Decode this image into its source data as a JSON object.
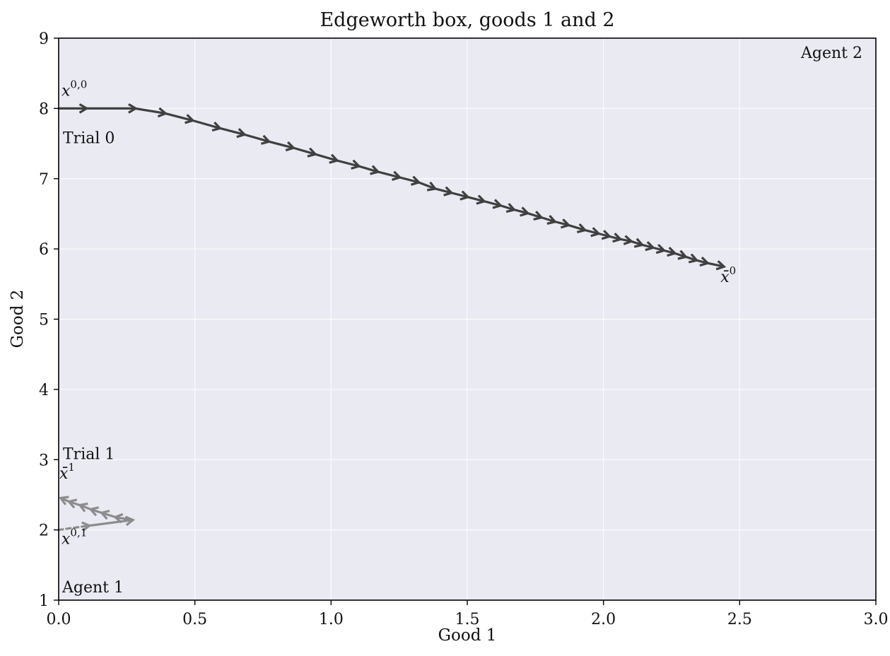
{
  "chart_data": {
    "type": "line",
    "title": "Edgeworth box, goods 1 and 2",
    "xlabel": "Good 1",
    "ylabel": "Good 2",
    "xlim": [
      0,
      3
    ],
    "ylim": [
      1,
      9
    ],
    "xticks": [
      0.0,
      0.5,
      1.0,
      1.5,
      2.0,
      2.5,
      3.0
    ],
    "xtick_labels": [
      "0.0",
      "0.5",
      "1.0",
      "1.5",
      "2.0",
      "2.5",
      "3.0"
    ],
    "yticks": [
      1,
      2,
      3,
      4,
      5,
      6,
      7,
      8,
      9
    ],
    "ytick_labels": [
      "1",
      "2",
      "3",
      "4",
      "5",
      "6",
      "7",
      "8",
      "9"
    ],
    "grid": true,
    "background": "#eaeaf2",
    "corner_labels": {
      "top_right": "Agent 2",
      "bottom_left": "Agent 1"
    },
    "series": [
      {
        "name": "Trial 0",
        "color": "#404040",
        "start_label": "x",
        "start_sup": "0,0",
        "end_label": "x̄",
        "end_sup": "0",
        "points": [
          [
            0.0,
            8.0
          ],
          [
            0.1,
            8.0
          ],
          [
            0.28,
            8.0
          ],
          [
            0.39,
            7.93
          ],
          [
            0.49,
            7.83
          ],
          [
            0.59,
            7.72
          ],
          [
            0.68,
            7.63
          ],
          [
            0.77,
            7.53
          ],
          [
            0.86,
            7.44
          ],
          [
            0.94,
            7.35
          ],
          [
            1.02,
            7.26
          ],
          [
            1.1,
            7.18
          ],
          [
            1.17,
            7.1
          ],
          [
            1.25,
            7.02
          ],
          [
            1.32,
            6.95
          ],
          [
            1.38,
            6.86
          ],
          [
            1.44,
            6.8
          ],
          [
            1.5,
            6.74
          ],
          [
            1.56,
            6.68
          ],
          [
            1.62,
            6.62
          ],
          [
            1.67,
            6.56
          ],
          [
            1.72,
            6.51
          ],
          [
            1.77,
            6.45
          ],
          [
            1.82,
            6.39
          ],
          [
            1.87,
            6.34
          ],
          [
            1.93,
            6.27
          ],
          [
            1.98,
            6.22
          ],
          [
            2.02,
            6.18
          ],
          [
            2.06,
            6.14
          ],
          [
            2.1,
            6.11
          ],
          [
            2.14,
            6.06
          ],
          [
            2.18,
            6.02
          ],
          [
            2.22,
            5.98
          ],
          [
            2.26,
            5.94
          ],
          [
            2.3,
            5.89
          ],
          [
            2.34,
            5.84
          ],
          [
            2.38,
            5.8
          ],
          [
            2.44,
            5.75
          ]
        ]
      },
      {
        "name": "Trial 1",
        "color": "#8c8c8c",
        "start_label": "x",
        "start_sup": "0,1",
        "end_label": "x̄",
        "end_sup": "1",
        "points": [
          [
            0.0,
            2.0
          ],
          [
            0.11,
            2.06
          ],
          [
            0.27,
            2.14
          ],
          [
            0.21,
            2.18
          ],
          [
            0.16,
            2.24
          ],
          [
            0.12,
            2.29
          ],
          [
            0.08,
            2.35
          ],
          [
            0.04,
            2.4
          ],
          [
            0.01,
            2.45
          ]
        ]
      }
    ]
  }
}
